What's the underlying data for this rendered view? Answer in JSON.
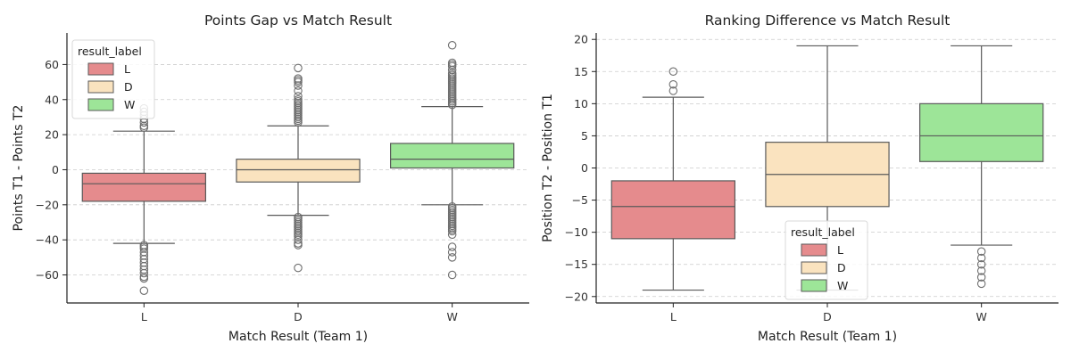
{
  "colors": {
    "L": "#e58b8d",
    "D": "#fae3bf",
    "W": "#9de598",
    "edge": "#5a5a5a"
  },
  "chart_data": [
    {
      "type": "box",
      "title": "Points Gap vs Match Result",
      "xlabel": "Match Result (Team 1)",
      "ylabel": "Points T1 - Points T2",
      "categories": [
        "L",
        "D",
        "W"
      ],
      "ylim": [
        -76,
        78
      ],
      "yticks": [
        -60,
        -40,
        -20,
        0,
        20,
        40,
        60
      ],
      "ytick_labels": [
        "−60",
        "−40",
        "−20",
        "0",
        "20",
        "40",
        "60"
      ],
      "grid": true,
      "legend": {
        "title": "result_label",
        "placement": "upper-left",
        "entries": [
          "L",
          "D",
          "W"
        ]
      },
      "boxes": [
        {
          "category": "L",
          "q1": -18,
          "median": -8,
          "q3": -2,
          "whisker_low": -42,
          "whisker_high": 22,
          "fliers": [
            24,
            25,
            27,
            29,
            31,
            33,
            35,
            -43,
            -44,
            -45,
            -47,
            -49,
            -51,
            -53,
            -55,
            -57,
            -59,
            -61,
            -62,
            -69
          ]
        },
        {
          "category": "D",
          "q1": -7,
          "median": 0,
          "q3": 6,
          "whisker_low": -26,
          "whisker_high": 25,
          "fliers": [
            27,
            28,
            29,
            30,
            31,
            32,
            33,
            34,
            35,
            36,
            37,
            38,
            39,
            40,
            42,
            45,
            48,
            50,
            51,
            52,
            58,
            -27,
            -28,
            -29,
            -30,
            -31,
            -32,
            -33,
            -34,
            -35,
            -36,
            -37,
            -38,
            -40,
            -42,
            -43,
            -56
          ]
        },
        {
          "category": "W",
          "q1": 1,
          "median": 6,
          "q3": 15,
          "whisker_low": -20,
          "whisker_high": 36,
          "fliers": [
            37,
            38,
            39,
            40,
            41,
            42,
            43,
            44,
            45,
            46,
            47,
            48,
            49,
            50,
            51,
            52,
            53,
            54,
            55,
            57,
            59,
            60,
            61,
            71,
            -21,
            -22,
            -23,
            -24,
            -25,
            -26,
            -27,
            -28,
            -29,
            -30,
            -31,
            -32,
            -33,
            -34,
            -35,
            -37,
            -44,
            -47,
            -50,
            -60
          ]
        }
      ]
    },
    {
      "type": "box",
      "title": "Ranking Difference vs Match Result",
      "xlabel": "Match Result (Team 1)",
      "ylabel": "Position T2 - Position T1",
      "categories": [
        "L",
        "D",
        "W"
      ],
      "ylim": [
        -21,
        21
      ],
      "yticks": [
        -20,
        -15,
        -10,
        -5,
        0,
        5,
        10,
        15,
        20
      ],
      "ytick_labels": [
        "−20",
        "−15",
        "−10",
        "−5",
        "0",
        "5",
        "10",
        "15",
        "20"
      ],
      "grid": true,
      "legend": {
        "title": "result_label",
        "placement": "lower-center",
        "entries": [
          "L",
          "D",
          "W"
        ]
      },
      "boxes": [
        {
          "category": "L",
          "q1": -11,
          "median": -6,
          "q3": -2,
          "whisker_low": -19,
          "whisker_high": 11,
          "fliers": [
            12,
            13,
            15
          ]
        },
        {
          "category": "D",
          "q1": -6,
          "median": -1,
          "q3": 4,
          "whisker_low": -19,
          "whisker_high": 19,
          "fliers": []
        },
        {
          "category": "W",
          "q1": 1,
          "median": 5,
          "q3": 10,
          "whisker_low": -12,
          "whisker_high": 19,
          "fliers": [
            -13,
            -14,
            -15,
            -16,
            -17,
            -18
          ]
        }
      ]
    }
  ]
}
